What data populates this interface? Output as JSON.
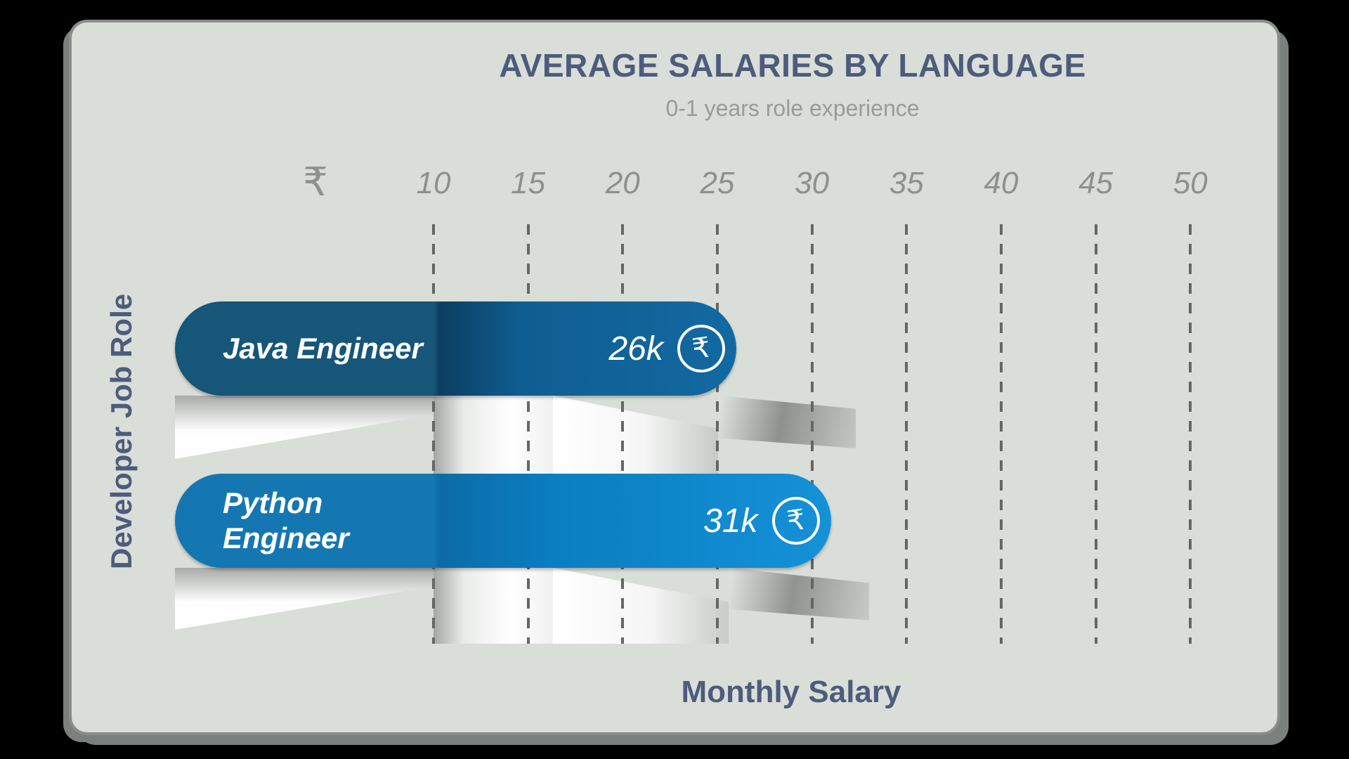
{
  "colors": {
    "page_background": "#000000",
    "panel_background": "#d9ded8",
    "panel_shadow": "#7c807c",
    "title_text": "#4d5c7c",
    "subtitle_text": "#989c98",
    "tick_text": "#8d918d",
    "gridline": "#646864",
    "bar_text": "#ffffff",
    "java_bar_solid": "#155679",
    "java_bar_dark": "#0b3e61",
    "java_bar_light": "#1269a1",
    "python_bar_solid": "#1577b2",
    "python_bar_dark": "#0d6ba7",
    "python_bar_light": "#1591d8"
  },
  "chart_data": {
    "type": "bar",
    "orientation": "horizontal",
    "title": "AVERAGE SALARIES BY LANGUAGE",
    "subtitle": "0-1 years role experience",
    "xlabel": "Monthly Salary",
    "ylabel": "Developer Job Role",
    "x_tick_prefix_symbol": "₹",
    "x_ticks": [
      10,
      15,
      20,
      25,
      30,
      35,
      40,
      45,
      50
    ],
    "xlim": [
      0,
      50
    ],
    "grid": "vertical-dashed",
    "unit": "thousand rupees per month",
    "categories": [
      "Java Engineer",
      "Python Engineer"
    ],
    "values": [
      26,
      31
    ],
    "bars": [
      {
        "label": "Java Engineer",
        "label_lines": "Java Engineer",
        "value": 26,
        "value_label": "26k",
        "currency_icon": "₹",
        "color_solid": "#155679",
        "color_dark": "#0b3e61",
        "color_mid": "#0f5e92",
        "color_light": "#1269a1"
      },
      {
        "label": "Python Engineer",
        "label_lines": "Python\nEngineer",
        "value": 31,
        "value_label": "31k",
        "currency_icon": "₹",
        "color_solid": "#1577b2",
        "color_dark": "#0d6ba7",
        "color_mid": "#0a7ec0",
        "color_light": "#1591d8"
      }
    ]
  }
}
